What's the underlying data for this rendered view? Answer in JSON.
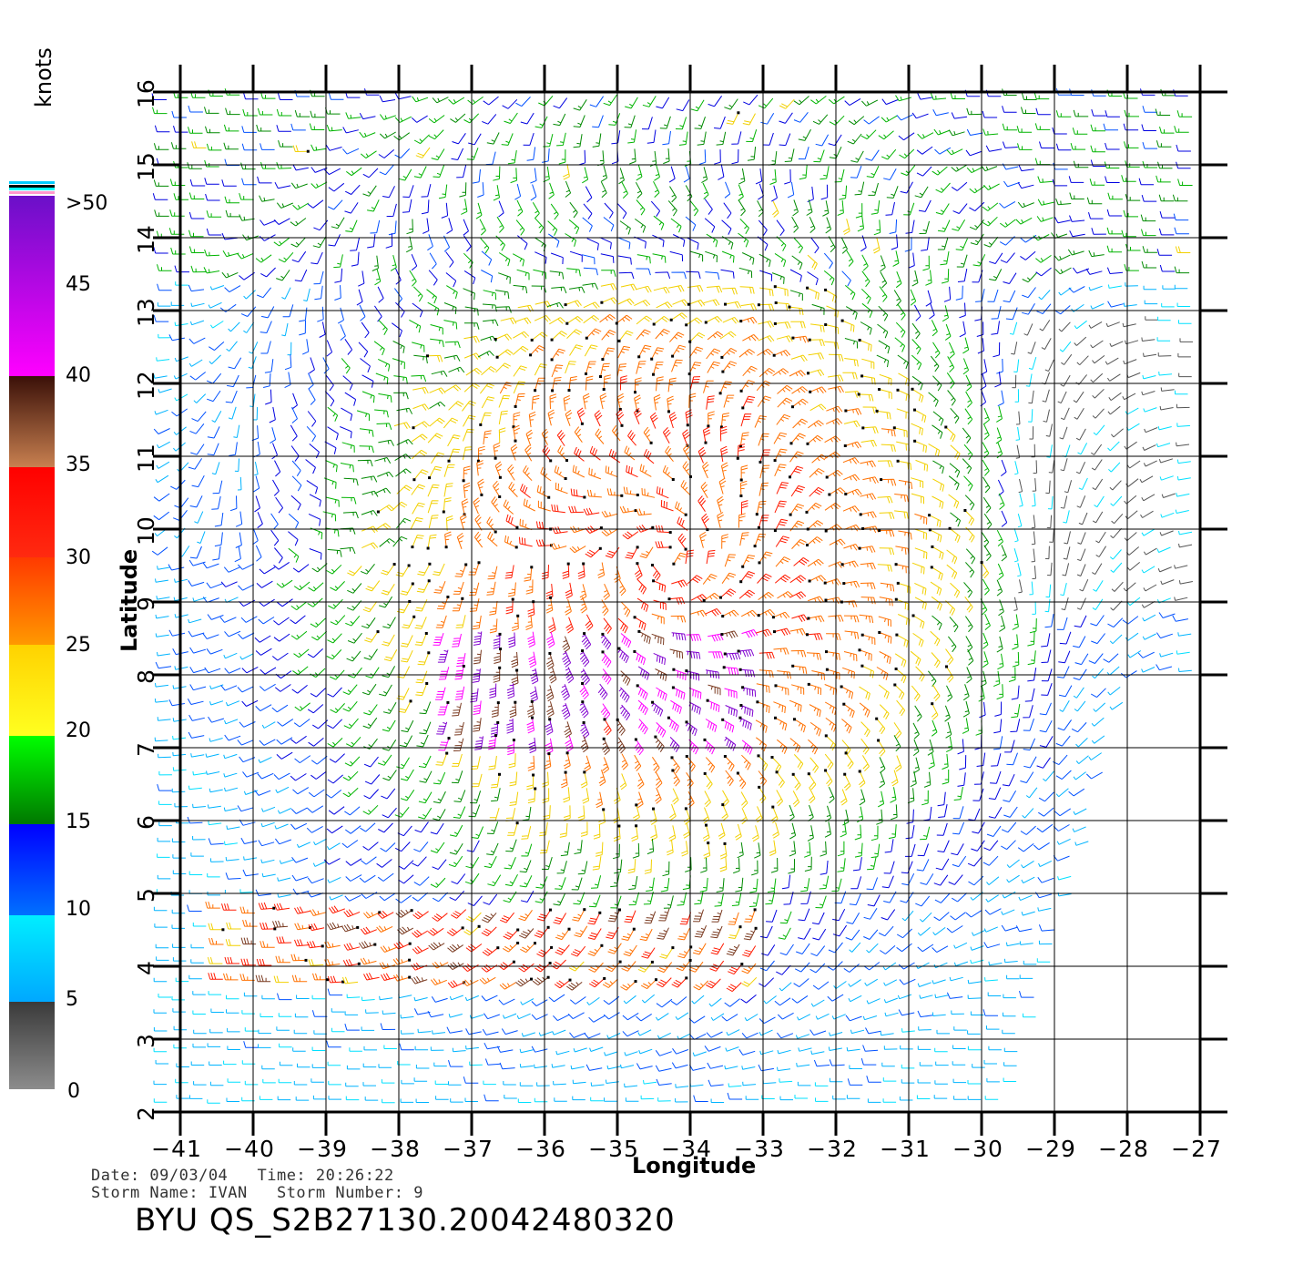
{
  "axes": {
    "xlabel": "Longitude",
    "ylabel": "Latitude",
    "x_ticks": [
      "-41",
      "-40",
      "-39",
      "-38",
      "-37",
      "-36",
      "-35",
      "-34",
      "-33",
      "-32",
      "-31",
      "-30",
      "-29",
      "-28",
      "-27"
    ],
    "y_ticks": [
      "2",
      "3",
      "4",
      "5",
      "6",
      "7",
      "8",
      "9",
      "10",
      "11",
      "12",
      "13",
      "14",
      "15",
      "16"
    ],
    "xlim": [
      -41,
      -27
    ],
    "ylim": [
      2,
      16
    ],
    "grid": true
  },
  "colorbar": {
    "unit": "knots",
    "labels": [
      "0",
      "5",
      "10",
      "15",
      "20",
      "25",
      "30",
      "35",
      "40",
      "45",
      ">50"
    ],
    "colors": {
      "0-5": "#8c8c8c",
      "5-10": "#00eeff",
      "10-15": "#0000ff",
      "15-20": "#00c800",
      "20-25": "#ffff00",
      "25-30": "#ff6600",
      "30-35": "#ff0000",
      "35-40": "#6b3018",
      "40-45": "#ff00ff",
      ">50": "#6a00c8"
    }
  },
  "meta": {
    "date_line": "Date: 09/03/04   Time: 20:26:22",
    "storm_line": "Storm Name: IVAN   Storm Number: 9",
    "file_id": "BYU QS_S2B27130.20042480320"
  },
  "chart_data": {
    "type": "wind-barb-field",
    "storm_center": {
      "lon": -34.3,
      "lat": 9.6
    },
    "max_wind_region": {
      "lon_range": [
        -36.5,
        -33.5
      ],
      "lat_range": [
        7.2,
        8.4
      ],
      "speed_knots": 50
    },
    "coverage_note_lon_max_at_lat2": -29.5
  }
}
